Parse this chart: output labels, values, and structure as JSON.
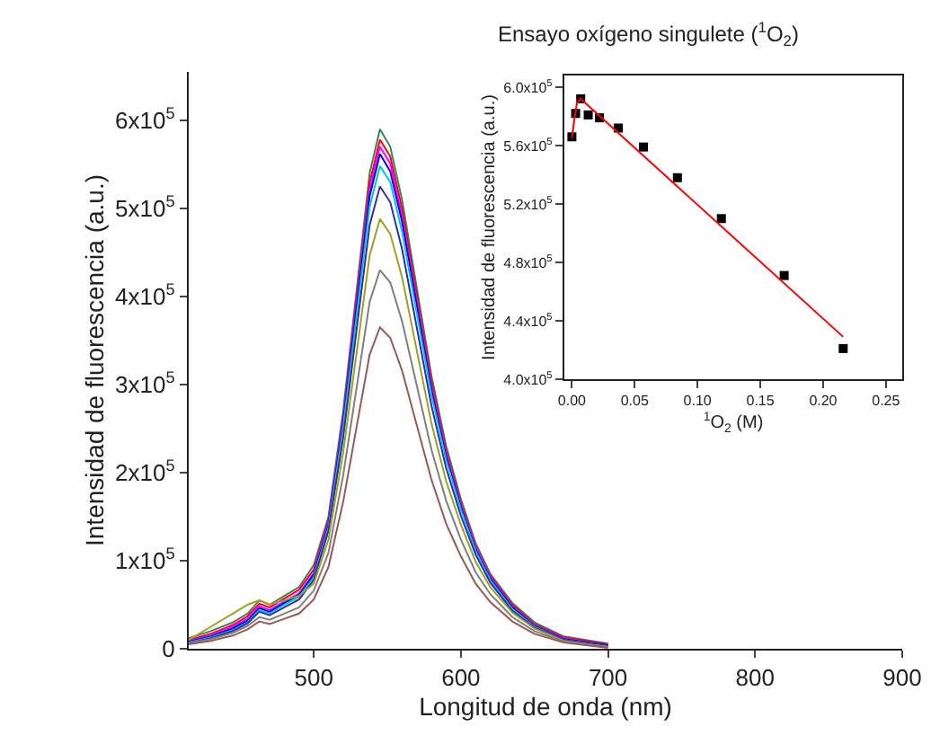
{
  "chart_data": [
    {
      "type": "line",
      "xlabel": "Longitud de onda (nm)",
      "ylabel": "Intensidad de fluorescencia (a.u.)",
      "xlim": [
        415,
        900
      ],
      "ylim": [
        0,
        655000
      ],
      "xticks": [
        500,
        600,
        700,
        800,
        900
      ],
      "yticks": [
        0,
        {
          "value": 100000,
          "label": "1x10$^{5}$"
        },
        {
          "value": 200000,
          "label": "2x10$^{5}$"
        },
        {
          "value": 300000,
          "label": "3x10$^{5}$"
        },
        {
          "value": 400000,
          "label": "4x10$^{5}$"
        },
        {
          "value": 500000,
          "label": "5x10$^{5}$"
        },
        {
          "value": 600000,
          "label": "6x10$^{5}$"
        }
      ],
      "marker": "none",
      "x": [
        415,
        430,
        445,
        455,
        463,
        470,
        480,
        490,
        500,
        510,
        520,
        530,
        538,
        545,
        552,
        560,
        570,
        580,
        590,
        600,
        610,
        620,
        635,
        650,
        670,
        700
      ],
      "series": [
        {
          "color": "#2e8b57",
          "values": [
            12000,
            20000,
            30000,
            40000,
            55000,
            50000,
            60000,
            70000,
            95000,
            150000,
            270000,
            420000,
            540000,
            590000,
            570000,
            510000,
            410000,
            310000,
            230000,
            170000,
            120000,
            85000,
            52000,
            30000,
            14000,
            6000
          ]
        },
        {
          "color": "#ff0000",
          "values": [
            10000,
            17000,
            27000,
            37000,
            51000,
            47000,
            57000,
            67000,
            90000,
            147000,
            264000,
            412000,
            529000,
            578000,
            559000,
            500000,
            402000,
            304000,
            225000,
            166000,
            117000,
            83000,
            50000,
            28000,
            13000,
            5000
          ]
        },
        {
          "color": "#ff00ff",
          "values": [
            9000,
            15000,
            25000,
            34000,
            48000,
            44000,
            54000,
            63000,
            86000,
            144000,
            260000,
            405000,
            521000,
            570000,
            551000,
            492000,
            396000,
            299000,
            222000,
            164000,
            116000,
            82000,
            48000,
            27000,
            12000,
            4000
          ]
        },
        {
          "color": "#0000ff",
          "values": [
            8000,
            14000,
            23000,
            32000,
            46000,
            42000,
            52000,
            61000,
            84000,
            141000,
            257000,
            400000,
            514000,
            562000,
            542000,
            485000,
            390000,
            294000,
            218000,
            161000,
            113000,
            80000,
            47000,
            26000,
            11000,
            4000
          ]
        },
        {
          "color": "#00c8d0",
          "values": [
            7000,
            13000,
            21000,
            30000,
            44000,
            40000,
            50000,
            59000,
            81000,
            138000,
            251000,
            390000,
            502000,
            548000,
            530000,
            474000,
            381000,
            288000,
            214000,
            158000,
            111000,
            78000,
            45000,
            25000,
            10000,
            3000
          ]
        },
        {
          "color": "#3030a0",
          "values": [
            6000,
            12000,
            20000,
            29000,
            42000,
            38000,
            47000,
            56000,
            78000,
            134000,
            240000,
            374000,
            481000,
            525000,
            507000,
            454000,
            365000,
            276000,
            205000,
            151000,
            107000,
            75000,
            43000,
            24000,
            10000,
            3000
          ]
        },
        {
          "color": "#a0a020",
          "values": [
            10000,
            25000,
            40000,
            50000,
            55000,
            50000,
            55000,
            60000,
            74000,
            124000,
            223000,
            347000,
            447000,
            488000,
            471000,
            422000,
            339000,
            256000,
            190000,
            141000,
            99000,
            70000,
            41000,
            23000,
            9000,
            2000
          ]
        },
        {
          "color": "#808080",
          "values": [
            6000,
            11000,
            18000,
            26000,
            36000,
            33000,
            40000,
            47000,
            66000,
            109000,
            197000,
            306000,
            394000,
            430000,
            416000,
            372000,
            299000,
            226000,
            168000,
            124000,
            87000,
            62000,
            36000,
            20000,
            8000,
            2000
          ]
        },
        {
          "color": "#9a5858",
          "values": [
            5000,
            9000,
            15000,
            22000,
            31000,
            28000,
            34000,
            40000,
            56000,
            93000,
            167000,
            260000,
            334000,
            365000,
            353000,
            316000,
            254000,
            192000,
            142000,
            105000,
            74000,
            53000,
            31000,
            17000,
            7000,
            1000
          ]
        }
      ]
    },
    {
      "type": "scatter",
      "title": "Ensayo oxígeno singulete ($^{1}$O$_{2}$)",
      "xlabel": "$^{1}$O$_{2}$ (M)",
      "ylabel": "Intensidad de fluorescencia (a.u.)",
      "xlim": [
        -0.006,
        0.263
      ],
      "ylim": [
        400000,
        608000
      ],
      "xticks": [
        {
          "value": 0,
          "label": "0.00"
        },
        {
          "value": 0.05,
          "label": "0.05"
        },
        {
          "value": 0.1,
          "label": "0.10"
        },
        {
          "value": 0.15,
          "label": "0.15"
        },
        {
          "value": 0.2,
          "label": "0.20"
        },
        {
          "value": 0.25,
          "label": "0.25"
        }
      ],
      "yticks": [
        {
          "value": 400000,
          "label": "4.0x10$^{5}$"
        },
        {
          "value": 440000,
          "label": "4.4x10$^{5}$"
        },
        {
          "value": 480000,
          "label": "4.8x10$^{5}$"
        },
        {
          "value": 520000,
          "label": "5.2x10$^{5}$"
        },
        {
          "value": 560000,
          "label": "5.6x10$^{5}$"
        },
        {
          "value": 600000,
          "label": "6.0x10$^{5}$"
        }
      ],
      "marker": "square",
      "series": [
        {
          "color": "#000000",
          "x": [
            0.0,
            0.003,
            0.007,
            0.013,
            0.022,
            0.037,
            0.057,
            0.084,
            0.119,
            0.169,
            0.216
          ],
          "values": [
            566000,
            582000,
            592000,
            581000,
            579000,
            572000,
            559000,
            538000,
            510000,
            471000,
            421000
          ]
        },
        {
          "type": "line",
          "marker": "none",
          "color": "#ff0000",
          "x": [
            0.0,
            0.002,
            0.004,
            0.007,
            0.216
          ],
          "values": [
            565000,
            578000,
            589000,
            592000,
            429000
          ]
        }
      ]
    }
  ]
}
